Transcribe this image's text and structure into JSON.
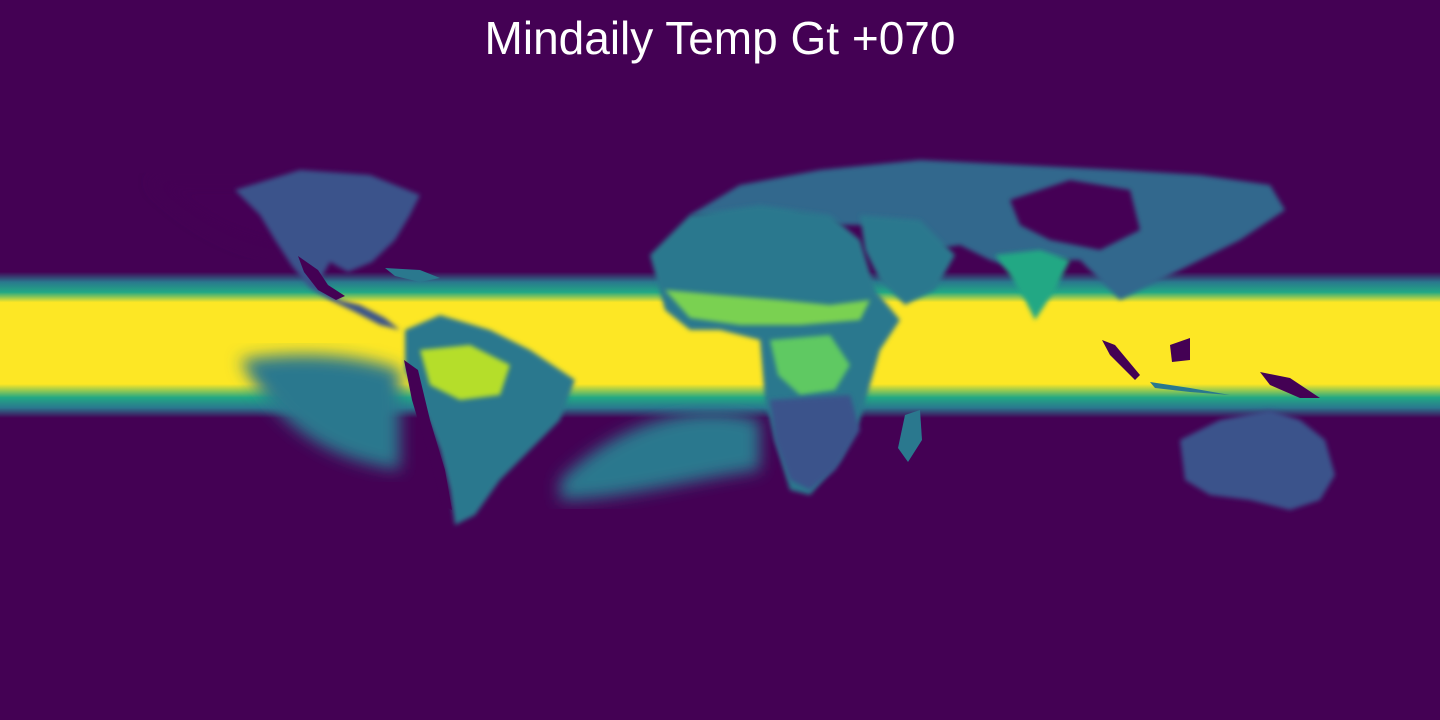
{
  "title": "Mindaily Temp Gt +070",
  "colormap": {
    "name": "viridis",
    "low": "#440154",
    "mid": "#21918c",
    "high": "#fde725"
  },
  "map": {
    "projection": "equirectangular",
    "variable": "mindaily temp gt +070"
  }
}
